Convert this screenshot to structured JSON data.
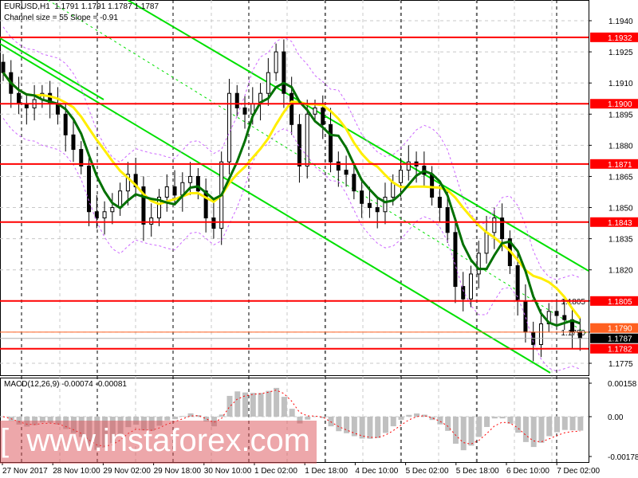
{
  "header": {
    "symbol_line": "EURUSD,H1  1.1791 1.1791 1.1787 1.1787",
    "indicator_line": "Channel size = 55 Slope = -0.91"
  },
  "macd_header": "MACD(12,26,9) -0.00074 -0.00081",
  "watermark": "[  www.instaforex.com  ]",
  "chart_data": [
    {
      "type": "candlestick",
      "symbol": "EURUSD",
      "timeframe": "H1",
      "ylim": [
        1.1768,
        1.195
      ],
      "y_ticks": [
        "1.1940",
        "1.1925",
        "1.1910",
        "1.1895",
        "1.1880",
        "1.1865",
        "1.1850",
        "1.1835",
        "1.1820",
        "1.1805",
        "1.1790",
        "1.1775"
      ],
      "x_tick_labels": [
        "27 Nov 2017",
        "28 Nov 10:00",
        "29 Nov 02:00",
        "29 Nov 18:00",
        "30 Nov 10:00",
        "1 Dec 02:00",
        "1 Dec 18:00",
        "4 Dec 10:00",
        "5 Dec 02:00",
        "5 Dec 18:00",
        "6 Dec 10:00",
        "7 Dec 02:00"
      ],
      "closes": [
        1.1915,
        1.1905,
        1.19,
        1.1898,
        1.1902,
        1.1905,
        1.19,
        1.1895,
        1.1885,
        1.1878,
        1.187,
        1.1848,
        1.1845,
        1.1848,
        1.185,
        1.1858,
        1.1866,
        1.186,
        1.1842,
        1.1845,
        1.1855,
        1.186,
        1.1856,
        1.1862,
        1.1865,
        1.1858,
        1.1845,
        1.184,
        1.1872,
        1.1905,
        1.1898,
        1.1895,
        1.19,
        1.1905,
        1.1915,
        1.1925,
        1.1905,
        1.189,
        1.187,
        1.1895,
        1.1898,
        1.189,
        1.1872,
        1.1868,
        1.1866,
        1.1858,
        1.1852,
        1.185,
        1.1848,
        1.1855,
        1.1862,
        1.1868,
        1.1872,
        1.187,
        1.1866,
        1.1855,
        1.185,
        1.1838,
        1.1812,
        1.1806,
        1.1818,
        1.1828,
        1.1838,
        1.1845,
        1.1835,
        1.1822,
        1.1805,
        1.179,
        1.1784,
        1.1794,
        1.18,
        1.1798,
        1.1796,
        1.179,
        1.1787
      ],
      "horizontal_levels": [
        "1.1932",
        "1.1900",
        "1.1871",
        "1.1843",
        "1.1805",
        "1.1782"
      ],
      "current_price": "1.1787",
      "ask_price": "1.1790",
      "colors": {
        "level": "#ff0000",
        "channel": "#00e000",
        "ma_fast": "#007000",
        "ma_slow": "#ffee00",
        "envelope": "#cc66ff",
        "candle": "#000000",
        "current": "#000000",
        "ask": "#ff6020"
      }
    },
    {
      "type": "bar",
      "name": "MACD(12,26,9)",
      "main": "-0.00074",
      "signal": "-0.00081",
      "ylim": [
        -0.00178,
        0.00158
      ],
      "y_ticks": [
        "0.00158",
        "0.00",
        "-0.00178"
      ],
      "colors": {
        "histogram": "#c0c0c0",
        "signal": "#ff0000"
      }
    }
  ]
}
